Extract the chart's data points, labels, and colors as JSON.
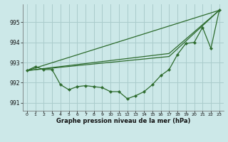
{
  "bg_color": "#cce8e8",
  "grid_color": "#aacccc",
  "line_color": "#2d6b2d",
  "ylim": [
    990.6,
    995.9
  ],
  "yticks": [
    991,
    992,
    993,
    994,
    995
  ],
  "ytick_labels": [
    "991",
    "992",
    "993",
    "994",
    "995"
  ],
  "xlim": [
    -0.5,
    23.5
  ],
  "xticks": [
    0,
    1,
    2,
    3,
    4,
    5,
    6,
    7,
    8,
    9,
    10,
    11,
    12,
    13,
    14,
    15,
    16,
    17,
    18,
    19,
    20,
    21,
    22,
    23
  ],
  "xlabel": "Graphe pression niveau de la mer (hPa)",
  "series_jagged": {
    "x": [
      0,
      1,
      2,
      3,
      4,
      5,
      6,
      7,
      8,
      9,
      10,
      11,
      12,
      13,
      14,
      15,
      16,
      17,
      18,
      19,
      20,
      21,
      22,
      23
    ],
    "y": [
      992.6,
      992.8,
      992.65,
      992.65,
      991.9,
      991.65,
      991.8,
      991.85,
      991.8,
      991.75,
      991.55,
      991.55,
      991.2,
      991.35,
      991.55,
      991.9,
      992.35,
      992.65,
      993.4,
      993.95,
      994.0,
      994.75,
      993.7,
      995.6
    ]
  },
  "series_diag1": {
    "x": [
      0,
      23
    ],
    "y": [
      992.6,
      995.6
    ]
  },
  "series_diag2": {
    "x": [
      0,
      17,
      23
    ],
    "y": [
      992.6,
      993.45,
      995.6
    ]
  },
  "series_diag3": {
    "x": [
      0,
      17,
      23
    ],
    "y": [
      992.6,
      993.3,
      995.6
    ]
  }
}
